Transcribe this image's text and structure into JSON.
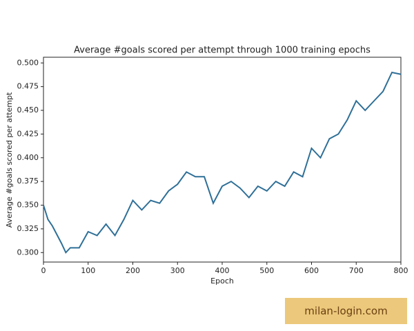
{
  "chart_data": {
    "type": "line",
    "title": "Average #goals scored per attempt through 1000 training epochs",
    "x_label": "Epoch",
    "y_label": "Average #goals scored per attempt",
    "x": [
      0,
      10,
      20,
      40,
      50,
      60,
      80,
      100,
      120,
      140,
      160,
      180,
      200,
      220,
      240,
      260,
      280,
      300,
      320,
      340,
      360,
      380,
      400,
      420,
      440,
      460,
      480,
      500,
      520,
      540,
      560,
      580,
      600,
      620,
      640,
      660,
      680,
      700,
      720,
      740,
      760,
      780,
      800
    ],
    "values": [
      0.35,
      0.335,
      0.328,
      0.31,
      0.3,
      0.305,
      0.305,
      0.322,
      0.318,
      0.33,
      0.318,
      0.335,
      0.355,
      0.345,
      0.355,
      0.352,
      0.365,
      0.372,
      0.385,
      0.38,
      0.38,
      0.352,
      0.37,
      0.375,
      0.368,
      0.358,
      0.37,
      0.365,
      0.375,
      0.37,
      0.385,
      0.38,
      0.41,
      0.4,
      0.42,
      0.425,
      0.44,
      0.46,
      0.45,
      0.46,
      0.47,
      0.49,
      0.488
    ],
    "color": "#2e6f97",
    "xlim": [
      0,
      800
    ],
    "xticks": [
      0,
      100,
      200,
      300,
      400,
      500,
      600,
      700,
      800
    ],
    "ylim": [
      0.29,
      0.506
    ],
    "yticks": [
      {
        "value": 0.3,
        "label": "0.300"
      },
      0.325,
      {
        "value": 0.35,
        "label": "0.350"
      },
      0.375,
      {
        "value": 0.4,
        "label": "0.400"
      },
      0.425,
      {
        "value": 0.45,
        "label": "0.450"
      },
      0.475,
      {
        "value": 0.5,
        "label": "0.500"
      }
    ]
  },
  "watermark": "milan-login.com"
}
